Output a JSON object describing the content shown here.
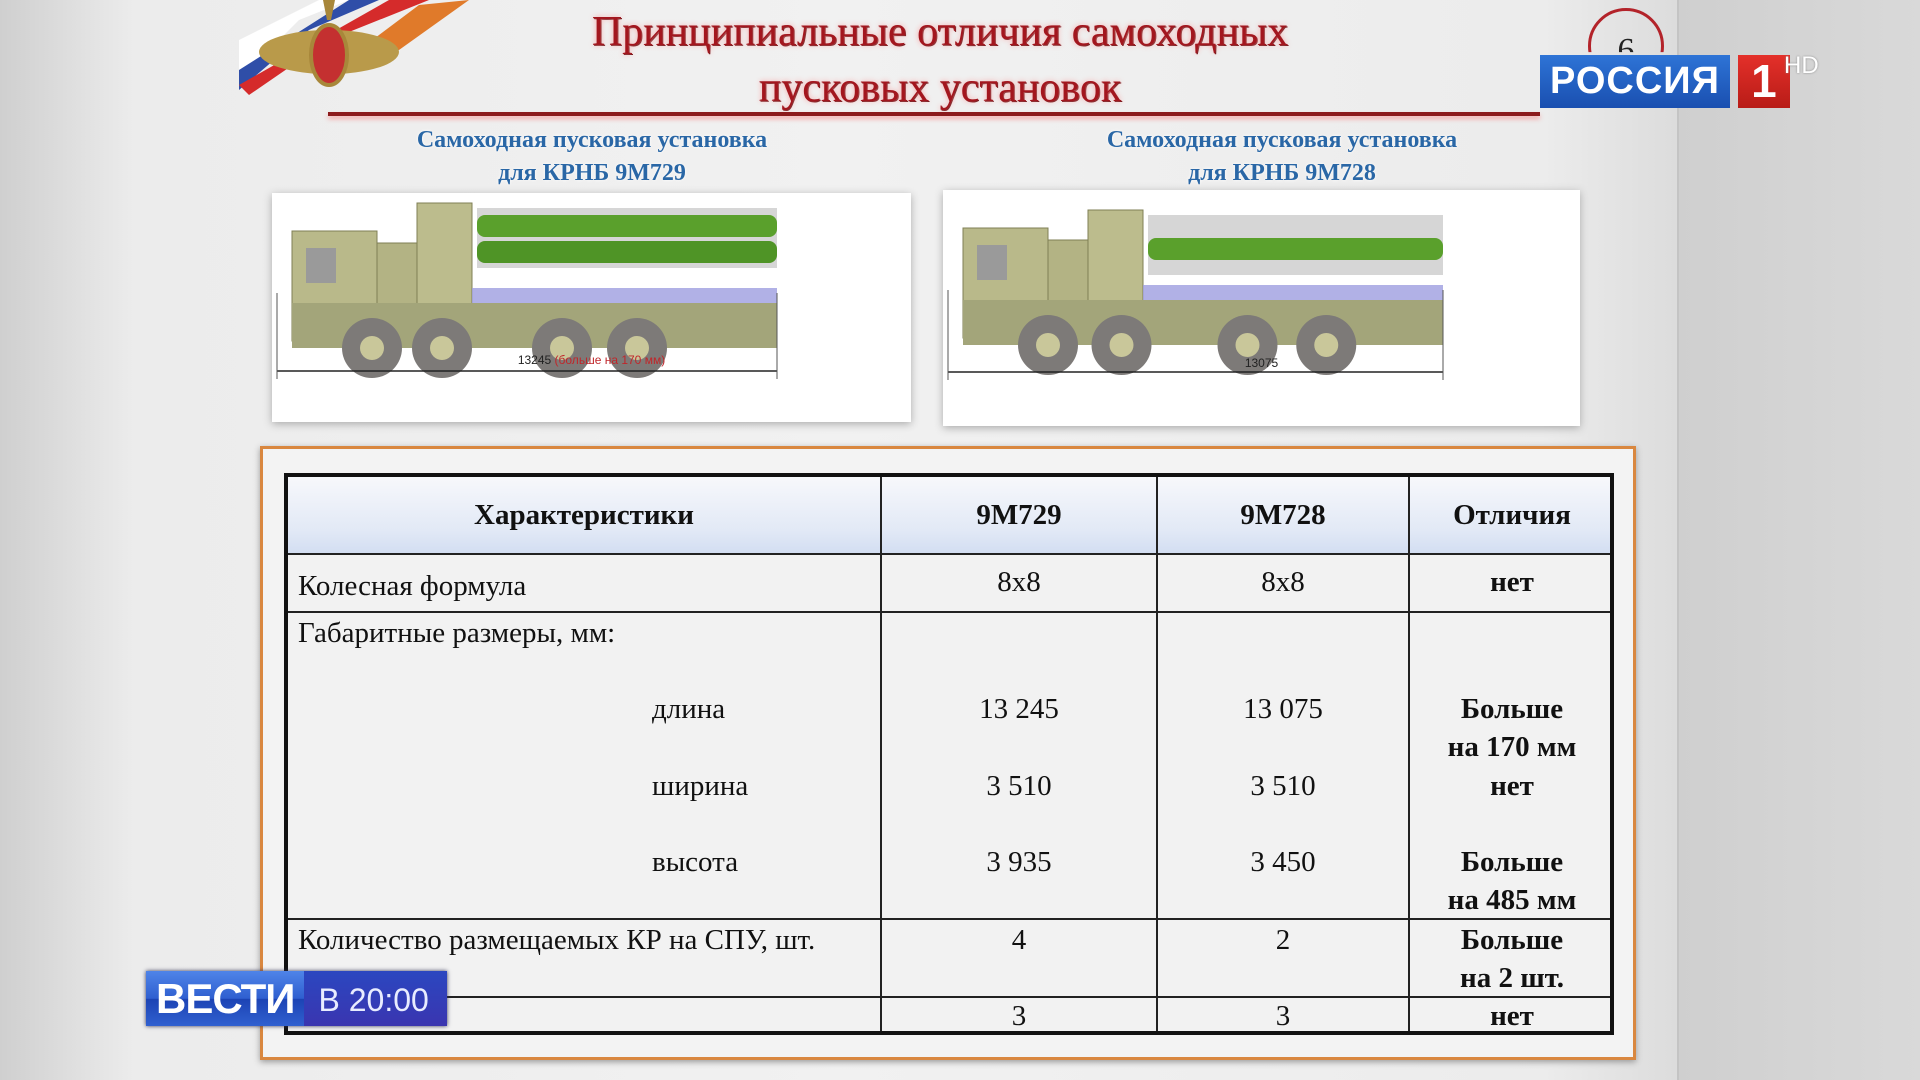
{
  "slide": {
    "title_line1": "Принципиальные отличия самоходных",
    "title_line2": "пусковых установок",
    "page_number": "6",
    "left_caption_line1": "Самоходная пусковая установка",
    "left_caption_line2": "для КРНБ 9М729",
    "right_caption_line1": "Самоходная пусковая установка",
    "right_caption_line2": "для КРНБ 9М728",
    "left_dimension": "13245",
    "left_dimension_note": "(больше на 170 мм)",
    "right_dimension": "13075"
  },
  "table": {
    "headers": [
      "Характеристики",
      "9М729",
      "9М728",
      "Отличия"
    ],
    "wheel": {
      "label": "Колесная формула",
      "a": "8x8",
      "b": "8x8",
      "diff": "нет"
    },
    "dims": {
      "label": "Габаритные размеры, мм:",
      "length": {
        "label": "длина",
        "a": "13 245",
        "b": "13 075",
        "diff1": "Больше",
        "diff2": "на 170 мм"
      },
      "width": {
        "label": "ширина",
        "a": "3 510",
        "b": "3 510",
        "diff": "нет"
      },
      "height": {
        "label": "высота",
        "a": "3 935",
        "b": "3 450",
        "diff1": "Больше",
        "diff2": "на 485 мм"
      }
    },
    "missiles": {
      "label": "Количество размещаемых КР на СПУ, шт.",
      "a": "4",
      "b": "2",
      "diff1": "Больше",
      "diff2": "на 2 шт."
    },
    "last": {
      "label": "",
      "a": "3",
      "b": "3",
      "diff": "нет"
    }
  },
  "overlay": {
    "channel": "РОССИЯ",
    "channel_number": "1",
    "hd": "HD",
    "program": "ВЕСТИ",
    "program_time": "В 20:00"
  },
  "colors": {
    "title": "#a3161e",
    "caption": "#2a67a6",
    "frame": "#d9873f",
    "missile": "#5aa02c",
    "truck": "#b8b88a"
  }
}
